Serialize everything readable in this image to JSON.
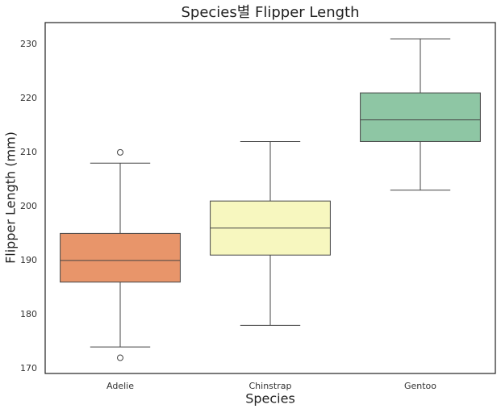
{
  "chart_data": {
    "type": "box",
    "title": "Species별 Flipper Length",
    "xlabel": "Species",
    "ylabel": "Flipper Length (mm)",
    "categories": [
      "Adelie",
      "Chinstrap",
      "Gentoo"
    ],
    "colors": [
      "#e8956a",
      "#f7f7bf",
      "#8ec6a4"
    ],
    "boxes": [
      {
        "whislo": 174,
        "q1": 186,
        "med": 190,
        "q3": 195,
        "whishi": 208,
        "fliers": [
          210,
          172
        ]
      },
      {
        "whislo": 178,
        "q1": 191,
        "med": 196,
        "q3": 201,
        "whishi": 212,
        "fliers": []
      },
      {
        "whislo": 203,
        "q1": 212,
        "med": 216,
        "q3": 221,
        "whishi": 231,
        "fliers": []
      }
    ],
    "ylim": [
      169.1,
      234
    ],
    "yticks": [
      170,
      180,
      190,
      200,
      210,
      220,
      230
    ],
    "grid": false
  }
}
